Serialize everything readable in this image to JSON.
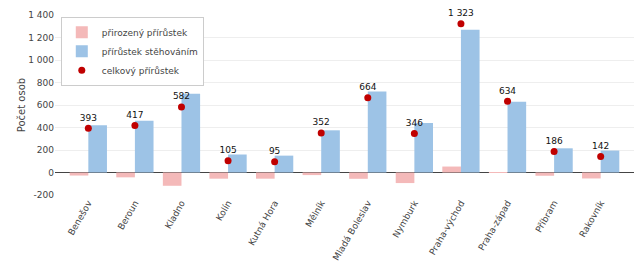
{
  "chart_data": {
    "type": "bar",
    "categories": [
      "Benešov",
      "Beroun",
      "Kladno",
      "Kolín",
      "Kutná Hora",
      "Mělník",
      "Mladá Boleslav",
      "Nymburk",
      "Praha-východ",
      "Praha-západ",
      "Příbram",
      "Rakovník"
    ],
    "series": [
      {
        "name": "přirozený přírůstek",
        "color": "#F4B9B9",
        "values": [
          -27,
          -43,
          -118,
          -55,
          -55,
          -23,
          -56,
          -94,
          53,
          4,
          -29,
          -53
        ]
      },
      {
        "name": "přírůstek stěhováním",
        "color": "#9DC3E6",
        "values": [
          420,
          460,
          700,
          160,
          150,
          375,
          720,
          440,
          1270,
          630,
          215,
          195
        ]
      },
      {
        "name": "celkový přírůstek",
        "color": "#C00000",
        "type": "scatter",
        "marker": "circle",
        "data_labels": true,
        "values": [
          393,
          417,
          582,
          105,
          95,
          352,
          664,
          346,
          1323,
          634,
          186,
          142
        ],
        "value_labels": [
          "393",
          "417",
          "582",
          "105",
          "95",
          "352",
          "664",
          "346",
          "1 323",
          "634",
          "186",
          "142"
        ]
      }
    ],
    "ylabel": "Počet osob",
    "ylim": [
      -200,
      1400
    ],
    "yticks": [
      -200,
      0,
      200,
      400,
      600,
      800,
      {
        "value": 1000,
        "label": "1 000"
      },
      {
        "value": 1200,
        "label": "1 200"
      },
      {
        "value": 1400,
        "label": "1 400"
      }
    ],
    "grid": true,
    "legend": "upper left"
  }
}
